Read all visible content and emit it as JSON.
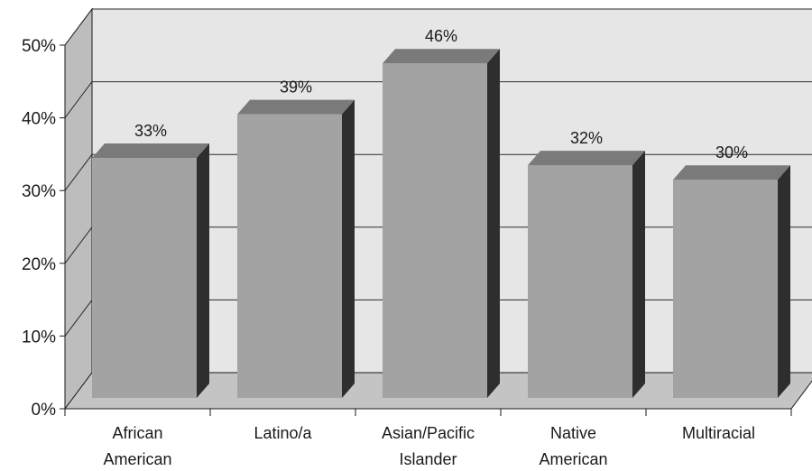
{
  "chart_data": {
    "type": "bar",
    "style": "3d",
    "categories": [
      [
        "African",
        "American"
      ],
      [
        "Latino/a"
      ],
      [
        "Asian/Pacific",
        "Islander"
      ],
      [
        "Native",
        "American"
      ],
      [
        "Multiracial"
      ]
    ],
    "values": [
      33,
      39,
      46,
      32,
      30
    ],
    "value_labels": [
      "33%",
      "39%",
      "46%",
      "32%",
      "30%"
    ],
    "y_ticks": [
      0,
      10,
      20,
      30,
      40,
      50
    ],
    "y_tick_labels": [
      "0%",
      "10%",
      "20%",
      "30%",
      "40%",
      "50%"
    ],
    "ylim": [
      0,
      50
    ],
    "grid": true,
    "legend": "none",
    "colors": {
      "bar_front": "#a3a3a3",
      "bar_top": "#7a7a7a",
      "bar_side": "#2e2e2e",
      "back_wall": "#e6e6e6",
      "side_wall": "#bdbdbd",
      "floor": "#c4c4c4",
      "gridline": "#2a2a2a"
    }
  }
}
